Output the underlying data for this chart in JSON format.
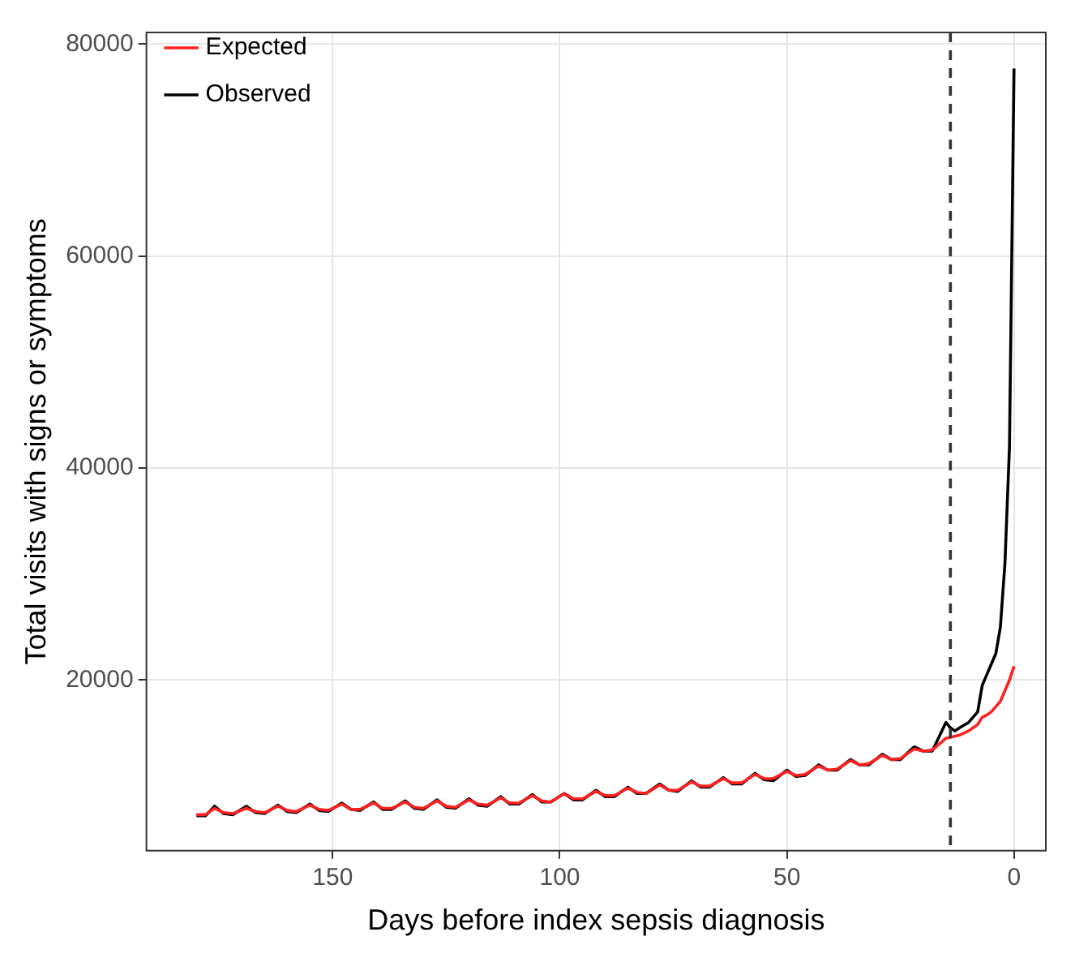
{
  "chart_data": {
    "type": "line",
    "xlabel": "Days before index sepsis diagnosis",
    "ylabel": "Total visits with signs or symptoms",
    "x": [
      180,
      178,
      176,
      174,
      172,
      169,
      167,
      165,
      162,
      160,
      158,
      155,
      153,
      151,
      148,
      146,
      144,
      141,
      139,
      137,
      134,
      132,
      130,
      127,
      125,
      123,
      120,
      118,
      116,
      113,
      111,
      109,
      106,
      104,
      102,
      99,
      97,
      95,
      92,
      90,
      88,
      85,
      83,
      81,
      78,
      76,
      74,
      71,
      69,
      67,
      64,
      62,
      60,
      57,
      55,
      53,
      50,
      48,
      46,
      43,
      41,
      39,
      36,
      34,
      32,
      29,
      27,
      25,
      22,
      20,
      18,
      15,
      14,
      13,
      12,
      10,
      8,
      7,
      6,
      5,
      4,
      3,
      2,
      1,
      0
    ],
    "series": [
      {
        "name": "Expected",
        "color": "#ff2020",
        "values": [
          7300,
          7300,
          7900,
          7500,
          7400,
          7900,
          7600,
          7500,
          8100,
          7700,
          7600,
          8200,
          7800,
          7700,
          8300,
          7800,
          7800,
          8400,
          7900,
          7900,
          8500,
          8000,
          7900,
          8600,
          8100,
          8000,
          8700,
          8300,
          8200,
          8900,
          8400,
          8400,
          9100,
          8600,
          8500,
          9300,
          8800,
          8800,
          9500,
          9100,
          9100,
          9800,
          9400,
          9300,
          10100,
          9600,
          9600,
          10400,
          10000,
          10000,
          10700,
          10300,
          10300,
          11100,
          10700,
          10700,
          11400,
          11000,
          11100,
          11900,
          11500,
          11600,
          12400,
          12000,
          12100,
          12900,
          12500,
          12600,
          13500,
          13300,
          13400,
          14500,
          14600,
          14700,
          14800,
          15200,
          15800,
          16500,
          16700,
          17000,
          17500,
          18000,
          19000,
          20000,
          21300
        ]
      },
      {
        "name": "Observed",
        "color": "#000000",
        "values": [
          7200,
          7200,
          8100,
          7400,
          7300,
          8100,
          7500,
          7400,
          8200,
          7600,
          7500,
          8300,
          7700,
          7600,
          8400,
          7800,
          7700,
          8500,
          7800,
          7800,
          8600,
          7900,
          7800,
          8700,
          8000,
          7900,
          8800,
          8200,
          8100,
          9000,
          8300,
          8300,
          9200,
          8500,
          8500,
          9300,
          8700,
          8700,
          9600,
          9000,
          9000,
          9900,
          9300,
          9300,
          10200,
          9600,
          9500,
          10500,
          9900,
          9900,
          10800,
          10200,
          10200,
          11200,
          10600,
          10500,
          11500,
          10900,
          11000,
          12000,
          11500,
          11500,
          12500,
          12000,
          12000,
          13000,
          12500,
          12500,
          13700,
          13300,
          13300,
          16000,
          15500,
          15200,
          15500,
          16000,
          17000,
          19500,
          20500,
          21500,
          22500,
          25000,
          31000,
          42000,
          77700
        ]
      }
    ],
    "xlim": [
      191,
      -7
    ],
    "xticks": [
      150,
      100,
      50,
      0
    ],
    "ylim": [
      3900,
      81100
    ],
    "yticks": [
      20000,
      40000,
      60000,
      80000
    ],
    "ref_lines": [
      {
        "axis": "x",
        "value": 14,
        "color": "#333333",
        "line_style": "dashed"
      }
    ],
    "grid": true,
    "legend": "top left",
    "marker": "none",
    "line_style": "solid"
  }
}
